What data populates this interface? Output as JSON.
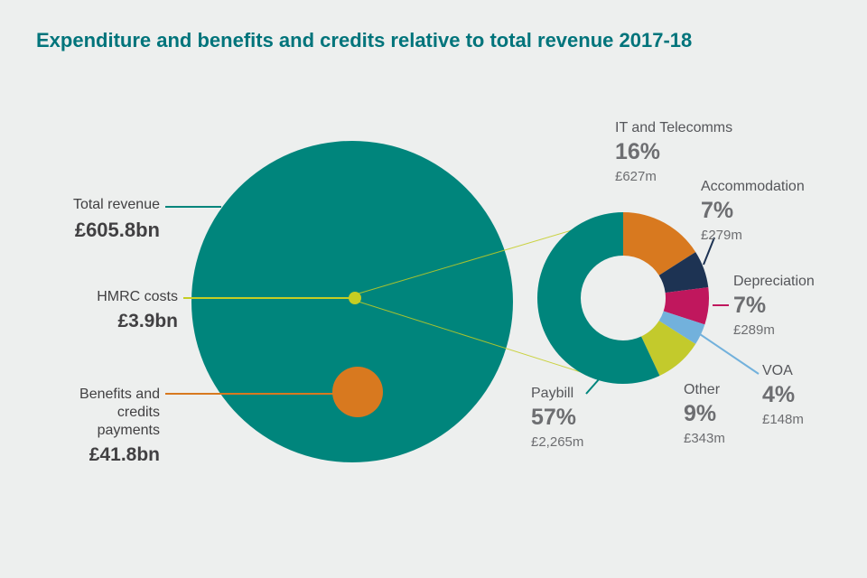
{
  "title": "Expenditure and benefits and credits relative to total revenue 2017-18",
  "colors": {
    "background": "#edefee",
    "title_text": "#00747b",
    "teal": "#00857c",
    "orange": "#d8791f",
    "yellow_green": "#c5cd23",
    "navy": "#1d3353",
    "magenta": "#c0175d",
    "light_blue": "#72b1dc",
    "olive": "#c3ca2c",
    "label_text": "#414042",
    "percent_text": "#6d6e71",
    "category_text": "#55565a"
  },
  "chart_data": [
    {
      "type": "bubble",
      "series": [
        {
          "label": "Total revenue",
          "value": 605.8,
          "unit": "£bn",
          "display": "£605.8bn",
          "color": "teal"
        },
        {
          "label": "HMRC costs",
          "value": 3.9,
          "unit": "£bn",
          "display": "£3.9bn",
          "color": "yellow_green"
        },
        {
          "label": "Benefits and credits payments",
          "display_label": "Benefits and\ncredits\npayments",
          "value": 41.8,
          "unit": "£bn",
          "display": "£41.8bn",
          "color": "orange"
        }
      ]
    },
    {
      "type": "pie",
      "subtype": "donut",
      "segments": [
        {
          "id": "it-telecomms",
          "label": "IT and Telecomms",
          "percent": 16,
          "percent_label": "16%",
          "amount": "£627m",
          "color": "orange"
        },
        {
          "id": "accommodation",
          "label": "Accommodation",
          "percent": 7,
          "percent_label": "7%",
          "amount": "£279m",
          "color": "navy"
        },
        {
          "id": "depreciation",
          "label": "Depreciation",
          "percent": 7,
          "percent_label": "7%",
          "amount": "£289m",
          "color": "magenta"
        },
        {
          "id": "voa",
          "label": "VOA",
          "percent": 4,
          "percent_label": "4%",
          "amount": "£148m",
          "color": "light_blue"
        },
        {
          "id": "other",
          "label": "Other",
          "percent": 9,
          "percent_label": "9%",
          "amount": "£343m",
          "color": "olive"
        },
        {
          "id": "paybill",
          "label": "Paybill",
          "percent": 57,
          "percent_label": "57%",
          "amount": "£2,265m",
          "color": "teal"
        }
      ]
    }
  ]
}
